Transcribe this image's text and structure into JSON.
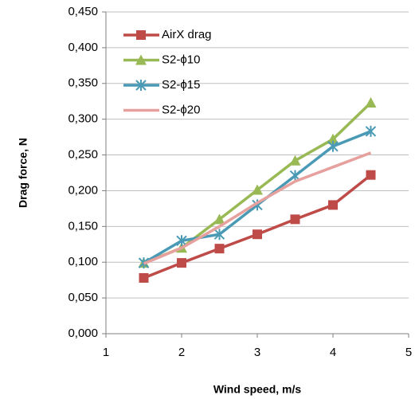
{
  "chart_data": {
    "type": "line",
    "x_label": "Wind speed, m/s",
    "y_label": "Drag force, N",
    "x": [
      1.5,
      2,
      2.5,
      3,
      3.5,
      4,
      4.5
    ],
    "series": [
      {
        "name": "AirX drag",
        "color": "#be4b48",
        "marker": "square",
        "values": [
          0.078,
          0.099,
          0.119,
          0.139,
          0.16,
          0.18,
          0.222
        ]
      },
      {
        "name": "S2-ϕ10",
        "color": "#98b954",
        "marker": "triangle",
        "values": [
          0.099,
          0.12,
          0.16,
          0.201,
          0.242,
          0.272,
          0.323
        ]
      },
      {
        "name": "S2-ϕ15",
        "color": "#4a9ab5",
        "marker": "asterisk",
        "values": [
          0.099,
          0.13,
          0.139,
          0.18,
          0.221,
          0.262,
          0.283
        ]
      },
      {
        "name": "S2-ϕ20",
        "color": "#e6a09e",
        "marker": "none",
        "values": [
          0.098,
          0.12,
          0.15,
          0.183,
          0.213,
          0.233,
          0.253
        ]
      }
    ],
    "xlim": [
      1,
      5
    ],
    "xticks": [
      1,
      2,
      3,
      4,
      5
    ],
    "ylim": [
      0,
      0.45
    ],
    "yticks": [
      {
        "value": 0,
        "label": "0,000"
      },
      {
        "value": 0.05,
        "label": "0,050"
      },
      {
        "value": 0.1,
        "label": "0,100"
      },
      {
        "value": 0.15,
        "label": "0,150"
      },
      {
        "value": 0.2,
        "label": "0,200"
      },
      {
        "value": 0.25,
        "label": "0,250"
      },
      {
        "value": 0.3,
        "label": "0,300"
      },
      {
        "value": 0.35,
        "label": "0,350"
      },
      {
        "value": 0.4,
        "label": "0,400"
      },
      {
        "value": 0.45,
        "label": "0,450"
      }
    ],
    "grid": true,
    "legend": "top-left"
  }
}
